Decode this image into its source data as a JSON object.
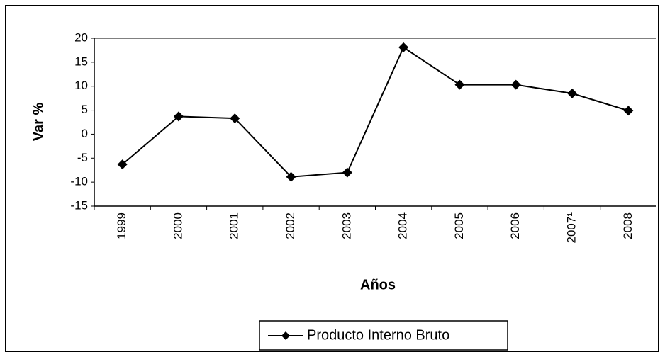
{
  "chart_data": {
    "type": "line",
    "categories": [
      "1999",
      "2000",
      "2001",
      "2002",
      "2003",
      "2004",
      "2005",
      "2006",
      "2007¹",
      "2008"
    ],
    "series": [
      {
        "name": "Producto Interno Bruto",
        "color": "#000000",
        "values": [
          -6.3,
          3.7,
          3.3,
          -8.9,
          -8.0,
          18.1,
          10.3,
          10.3,
          8.5,
          4.9
        ]
      }
    ],
    "xlabel": "Años",
    "ylabel": "Var %",
    "ylim": [
      -15,
      20
    ],
    "yticks": [
      -15,
      -10,
      -5,
      0,
      5,
      10,
      15,
      20
    ],
    "grid": false,
    "legend": "bottom"
  }
}
